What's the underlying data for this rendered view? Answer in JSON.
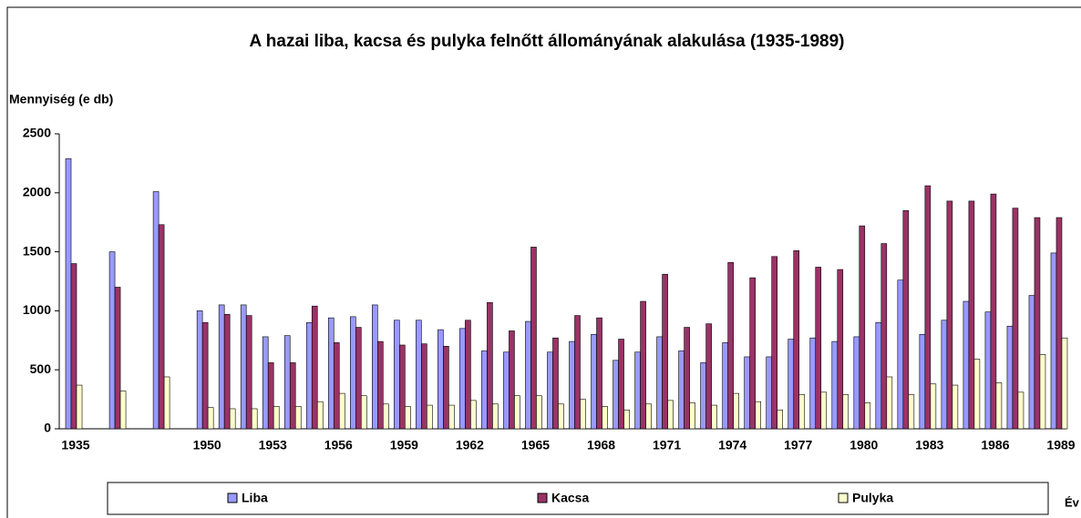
{
  "chart_data": {
    "type": "bar",
    "title": "A hazai liba, kacsa és pulyka felnőtt állományának alakulása (1935-1989)",
    "y_label": "Mennyiség (e db)",
    "x_label": "Év",
    "categories": [
      "1935",
      null,
      null,
      null,
      null,
      null,
      "1950",
      null,
      null,
      "1953",
      null,
      null,
      "1956",
      null,
      null,
      "1959",
      null,
      null,
      "1962",
      null,
      null,
      "1965",
      null,
      null,
      "1968",
      null,
      null,
      "1971",
      null,
      null,
      "1974",
      null,
      null,
      "1977",
      null,
      null,
      "1980",
      null,
      null,
      "1983",
      null,
      null,
      "1986",
      null,
      null,
      "1989"
    ],
    "series": [
      {
        "name": "Liba",
        "color": "#9999ff",
        "values": [
          2290,
          null,
          1500,
          null,
          2010,
          null,
          1000,
          1050,
          1050,
          780,
          790,
          900,
          940,
          950,
          1050,
          920,
          920,
          840,
          850,
          660,
          650,
          910,
          650,
          740,
          800,
          580,
          650,
          780,
          660,
          560,
          730,
          610,
          610,
          760,
          770,
          740,
          780,
          900,
          1260,
          800,
          920,
          1080,
          990,
          870,
          1130,
          1490
        ]
      },
      {
        "name": "Kacsa",
        "color": "#993366",
        "values": [
          1400,
          null,
          1200,
          null,
          1730,
          null,
          900,
          970,
          960,
          560,
          560,
          1040,
          730,
          860,
          740,
          710,
          720,
          700,
          920,
          1070,
          830,
          1540,
          770,
          960,
          940,
          760,
          1080,
          1310,
          860,
          890,
          1410,
          1280,
          1460,
          1510,
          1370,
          1350,
          1720,
          1570,
          1850,
          2060,
          1930,
          1930,
          1990,
          1870,
          1790,
          1790
        ]
      },
      {
        "name": "Pulyka",
        "color": "#ffffcc",
        "values": [
          370,
          null,
          320,
          null,
          440,
          null,
          180,
          170,
          170,
          190,
          190,
          230,
          300,
          280,
          210,
          190,
          200,
          200,
          240,
          210,
          280,
          280,
          210,
          250,
          190,
          160,
          210,
          240,
          220,
          200,
          300,
          230,
          160,
          290,
          310,
          290,
          220,
          440,
          290,
          380,
          370,
          590,
          390,
          310,
          630,
          770
        ]
      }
    ],
    "ylim": [
      0,
      2500
    ],
    "yticks": [
      0,
      500,
      1000,
      1500,
      2000,
      2500
    ]
  }
}
